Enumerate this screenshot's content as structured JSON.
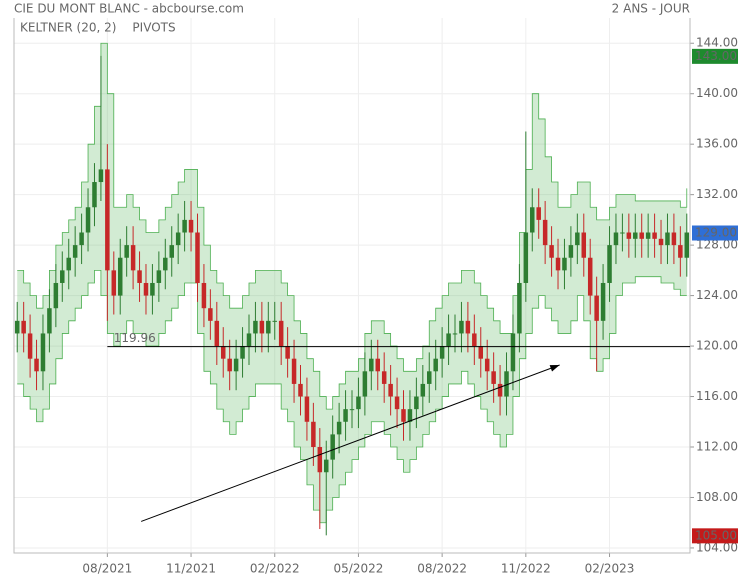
{
  "chart_data": {
    "type": "candlestick",
    "title": "CIE DU MONT BLANC - abcbourse.com",
    "period": "2 ANS - JOUR",
    "indicators": [
      {
        "name": "KELTNER (20, 2)",
        "color": "#4caf50"
      },
      {
        "name": "PIVOTS",
        "color": "#444444"
      }
    ],
    "categories": [
      null,
      null,
      null,
      null,
      null,
      null,
      null,
      null,
      null,
      null,
      null,
      null,
      null,
      null,
      "08/2021",
      null,
      null,
      null,
      null,
      null,
      null,
      null,
      null,
      null,
      null,
      null,
      null,
      "11/2021",
      null,
      null,
      null,
      null,
      null,
      null,
      null,
      null,
      null,
      null,
      null,
      null,
      "02/2022",
      null,
      null,
      null,
      null,
      null,
      null,
      null,
      null,
      null,
      null,
      null,
      null,
      "05/2022",
      null,
      null,
      null,
      null,
      null,
      null,
      null,
      null,
      null,
      null,
      null,
      null,
      "08/2022",
      null,
      null,
      null,
      null,
      null,
      null,
      null,
      null,
      null,
      null,
      null,
      null,
      "11/2022",
      null,
      null,
      null,
      null,
      null,
      null,
      null,
      null,
      null,
      null,
      null,
      null,
      "02/2023",
      null,
      null,
      null,
      null,
      null,
      null,
      null,
      null,
      null,
      null,
      null,
      null
    ],
    "open": [
      121,
      122,
      121,
      119,
      118,
      121,
      123,
      125,
      126,
      127,
      128,
      129,
      131,
      133,
      134,
      126,
      124,
      127,
      128,
      126,
      125,
      124,
      125,
      126,
      127,
      128,
      129,
      130,
      129,
      125,
      123,
      122,
      120,
      119,
      118,
      119,
      120,
      121,
      122,
      121,
      122,
      122,
      120,
      119,
      117,
      116,
      114,
      112,
      110,
      111,
      113,
      114,
      115,
      115,
      116,
      118,
      119,
      118,
      117,
      116,
      115,
      114,
      115,
      116,
      117,
      118,
      119,
      120,
      121,
      121,
      122,
      121,
      120,
      119,
      118,
      117,
      116,
      118,
      121,
      125,
      129,
      131,
      130,
      128,
      127,
      126,
      127,
      128,
      129,
      127,
      124,
      122,
      125,
      128,
      129,
      129,
      128.5,
      129,
      128.5,
      129,
      128.5,
      128,
      129,
      128,
      127
    ],
    "high": [
      123.5,
      123.5,
      122.5,
      120.5,
      122.5,
      124.5,
      126.5,
      127.5,
      128.5,
      129.5,
      130.5,
      132.5,
      134.5,
      143,
      136,
      127.5,
      128.5,
      129.5,
      129.5,
      127.5,
      126.5,
      126.5,
      127.5,
      128.5,
      129.5,
      130.5,
      131.5,
      131.5,
      130.5,
      126.5,
      124.5,
      123.5,
      121.5,
      120.5,
      120.5,
      121.5,
      122.5,
      123.5,
      123.5,
      123.5,
      123.5,
      123.5,
      121.5,
      120.5,
      118.5,
      117.5,
      115.5,
      113.5,
      112.5,
      114.5,
      115.5,
      116.5,
      116.5,
      117.5,
      119.5,
      120.5,
      120.5,
      119.5,
      118.5,
      117.5,
      116.5,
      116.5,
      117.5,
      118.5,
      119.5,
      120.5,
      121.5,
      122.5,
      122.5,
      123.5,
      123.5,
      122.5,
      121.5,
      120.5,
      119.5,
      118.5,
      119.5,
      122.5,
      126.5,
      137,
      132.5,
      132.5,
      131.5,
      129.5,
      128.5,
      128.5,
      129.5,
      130.5,
      130.5,
      128.5,
      125.5,
      126.5,
      129.5,
      130.5,
      130.5,
      130.5,
      130.5,
      130.5,
      130.5,
      130.5,
      130,
      130.5,
      130.5,
      129.5,
      130.5
    ],
    "low": [
      119.5,
      119.5,
      117.5,
      116.5,
      116.5,
      119.5,
      121.5,
      123.5,
      124.5,
      125.5,
      126.5,
      127.5,
      129.5,
      131.5,
      122,
      122.5,
      122.5,
      125.5,
      124.5,
      123.5,
      122.5,
      122.5,
      123.5,
      124.5,
      125.5,
      126.5,
      127.5,
      127.5,
      123.5,
      121.5,
      120.5,
      118.5,
      117.5,
      116.5,
      116.5,
      117.5,
      118.5,
      119.5,
      119.5,
      119.5,
      120.5,
      118.5,
      117.5,
      115.5,
      114.5,
      112.5,
      110.5,
      105.5,
      105,
      109.5,
      111.5,
      112.5,
      113.5,
      113.5,
      114.5,
      116.5,
      116.5,
      115.5,
      114.5,
      113.5,
      112.5,
      112.5,
      113.5,
      114.5,
      115.5,
      116.5,
      117.5,
      118.5,
      119.5,
      119.5,
      119.5,
      118.5,
      117.5,
      116.5,
      115.5,
      114.5,
      114.5,
      116.5,
      119.5,
      123.5,
      127.5,
      128.5,
      126.5,
      125.5,
      124.5,
      124.5,
      125.5,
      126.5,
      125.5,
      122.5,
      118,
      120.5,
      123.5,
      126.5,
      127.5,
      127,
      127,
      127,
      127,
      127,
      126.5,
      126.5,
      126.5,
      125.5,
      125.5
    ],
    "close": [
      122,
      121,
      119,
      118,
      121,
      123,
      125,
      126,
      127,
      128,
      129,
      131,
      133,
      134,
      126,
      124,
      127,
      128,
      126,
      125,
      124,
      125,
      126,
      127,
      128,
      129,
      130,
      129,
      125,
      123,
      122,
      120,
      119,
      118,
      119,
      120,
      121,
      122,
      121,
      122,
      122,
      120,
      119,
      117,
      116,
      114,
      112,
      110,
      111,
      113,
      114,
      115,
      115,
      116,
      118,
      119,
      118,
      117,
      116,
      115,
      114,
      115,
      116,
      117,
      118,
      119,
      120,
      121,
      121,
      122,
      121,
      120,
      119,
      118,
      117,
      116,
      118,
      121,
      125,
      129,
      131,
      130,
      128,
      127,
      126,
      127,
      128,
      129,
      127,
      124,
      122,
      125,
      128,
      129,
      129,
      128.5,
      129,
      128.5,
      129,
      128.5,
      128,
      129,
      128,
      127,
      129
    ],
    "up_color": "#2e7d32",
    "down_color": "#c62828",
    "band_upper": [
      126,
      125,
      124,
      123,
      124,
      126,
      128,
      129,
      130,
      131,
      133,
      136,
      139,
      144,
      140,
      131,
      131,
      132,
      131,
      130,
      129,
      129,
      130,
      131,
      132,
      133,
      134,
      134,
      131,
      128,
      126,
      125,
      124,
      123,
      123,
      124,
      125,
      126,
      126,
      126,
      126,
      125,
      124,
      122,
      121,
      119,
      118,
      116,
      115,
      116,
      117,
      118,
      118,
      119,
      121,
      122,
      122,
      121,
      120,
      119,
      118,
      118,
      119,
      120,
      122,
      123,
      124,
      125,
      125,
      126,
      126,
      125,
      124,
      123,
      122,
      121,
      121,
      124,
      129,
      134,
      140,
      138,
      135,
      133,
      131,
      131,
      132,
      133,
      133,
      131,
      130,
      130,
      131,
      132,
      132,
      132,
      131.5,
      131.5,
      131.5,
      131.5,
      131.5,
      131.5,
      131.5,
      131,
      132.5
    ],
    "band_lower": [
      117,
      116,
      115,
      114,
      115,
      117,
      119,
      121,
      122,
      123,
      124,
      125,
      126,
      124,
      121,
      120,
      121,
      122,
      121,
      121,
      120,
      120,
      121,
      122,
      123,
      124,
      125,
      125,
      121,
      118,
      117,
      115,
      114,
      113,
      114,
      115,
      116,
      117,
      117,
      117,
      117,
      115,
      114,
      112,
      111,
      109,
      107,
      106,
      107,
      108,
      109,
      110,
      111,
      112,
      113,
      114,
      114,
      113,
      112,
      111,
      110,
      111,
      112,
      113,
      114,
      115,
      116,
      117,
      117,
      118,
      117,
      116,
      115,
      114,
      113,
      112,
      113,
      116,
      119,
      121,
      123,
      124,
      123,
      122,
      121,
      121,
      122,
      124,
      122,
      119,
      118,
      119,
      121,
      124,
      125,
      125,
      125.5,
      125.5,
      125.5,
      125.5,
      125,
      125,
      124.5,
      124,
      124
    ],
    "band_color": "#4caf50",
    "pivot": {
      "value": 119.96,
      "label": "119.96"
    },
    "trendline": {
      "x": [
        19.25,
        84.25
      ],
      "y": [
        106.1,
        118.5
      ]
    },
    "price_labels": [
      {
        "value": 143,
        "label": "143.00",
        "color": "#1e8a2e"
      },
      {
        "value": 129,
        "label": "129.00",
        "color": "#2f6fd6"
      },
      {
        "value": 105,
        "label": "105.00",
        "color": "#c41a1a"
      }
    ],
    "ylim": [
      103.6,
      146
    ],
    "yticks": [
      {
        "value": 104,
        "label": "104.00"
      },
      {
        "value": 108,
        "label": "108.00"
      },
      {
        "value": 112,
        "label": "112.00"
      },
      {
        "value": 116,
        "label": "116.00"
      },
      {
        "value": 120,
        "label": "120.00"
      },
      {
        "value": 124,
        "label": "124.00"
      },
      {
        "value": 128,
        "label": "128.00"
      },
      {
        "value": 132,
        "label": "132.00"
      },
      {
        "value": 136,
        "label": "136.00"
      },
      {
        "value": 140,
        "label": "140.00"
      },
      {
        "value": 144,
        "label": "144.00"
      }
    ],
    "grid": true
  }
}
